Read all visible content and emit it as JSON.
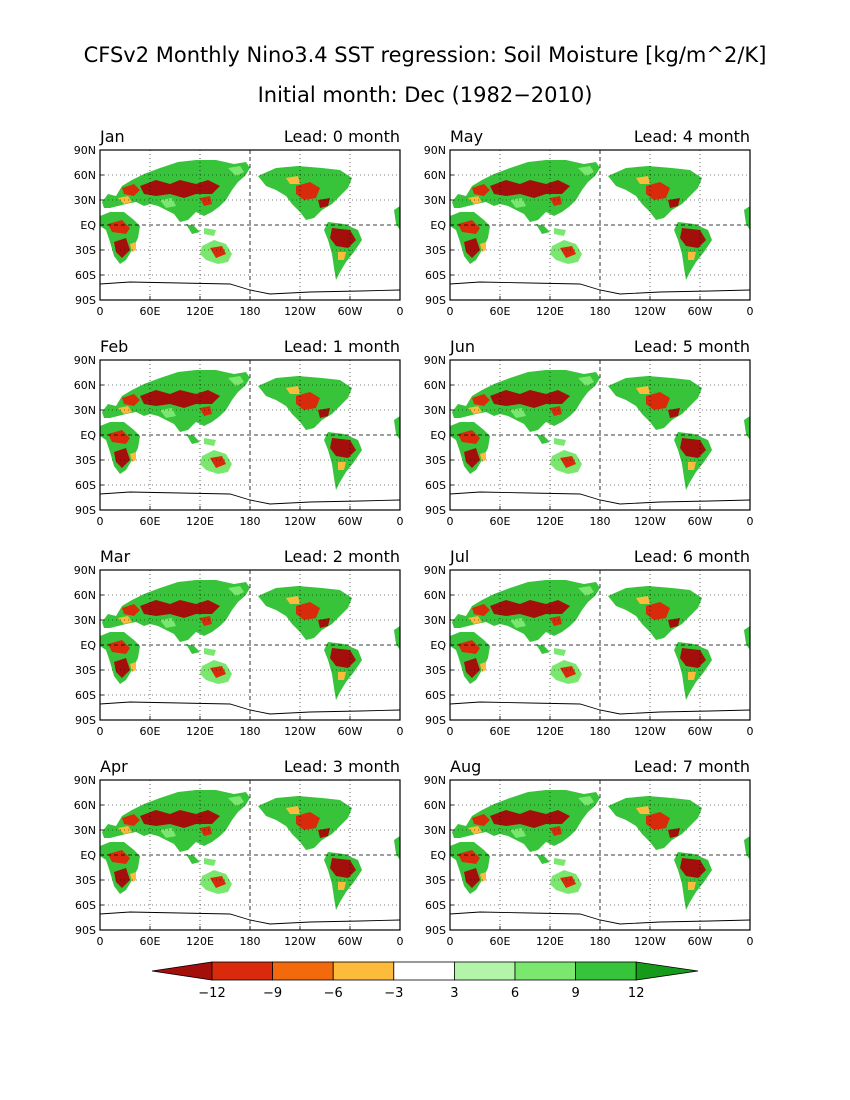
{
  "title": {
    "line1": "CFSv2 Monthly Nino3.4 SST regression: Soil Moisture [kg/m^2/K]",
    "line2": "Initial month: Dec (1982−2010)"
  },
  "axes": {
    "lat_labels": [
      "90N",
      "60N",
      "30N",
      "EQ",
      "30S",
      "60S",
      "90S"
    ],
    "lon_labels": [
      "0",
      "60E",
      "120E",
      "180",
      "120W",
      "60W",
      "0"
    ]
  },
  "panels": [
    {
      "month": "Jan",
      "lead": "Lead: 0 month"
    },
    {
      "month": "Feb",
      "lead": "Lead: 1 month"
    },
    {
      "month": "Mar",
      "lead": "Lead: 2 month"
    },
    {
      "month": "Apr",
      "lead": "Lead: 3 month"
    },
    {
      "month": "May",
      "lead": "Lead: 4 month"
    },
    {
      "month": "Jun",
      "lead": "Lead: 5 month"
    },
    {
      "month": "Jul",
      "lead": "Lead: 6 month"
    },
    {
      "month": "Aug",
      "lead": "Lead: 7 month"
    }
  ],
  "colorbar": {
    "labels": [
      "−12",
      "−9",
      "−6",
      "−3",
      "3",
      "6",
      "9",
      "12"
    ],
    "colors": [
      "#a50f0b",
      "#d92b0c",
      "#f36a0d",
      "#fdbb3c",
      "#ffffff",
      "#b2f5a8",
      "#7ae86f",
      "#37c43b",
      "#159a19"
    ]
  },
  "colors": {
    "dry_strong": "#a50f0b",
    "dry": "#d92b0c",
    "dry_mid": "#f36a0d",
    "dry_weak": "#fdbb3c",
    "wet_weak": "#b2f5a8",
    "wet": "#7ae86f",
    "wet_strong": "#159a19"
  }
}
